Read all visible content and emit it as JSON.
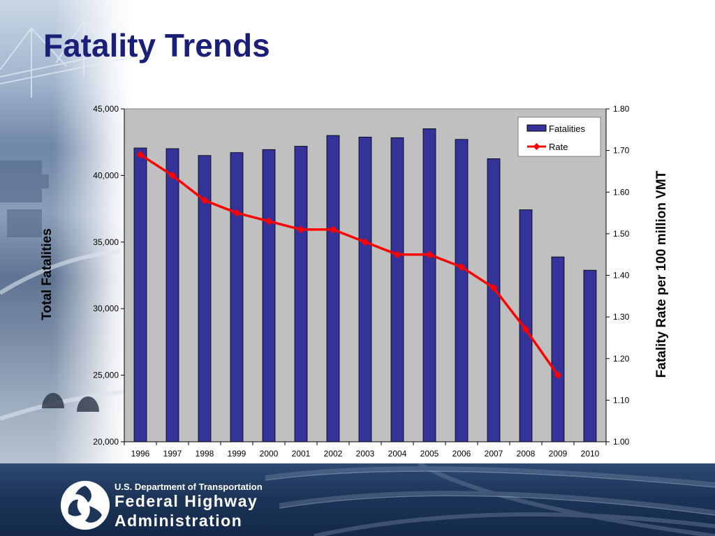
{
  "slide": {
    "title": "Fatality Trends"
  },
  "branding": {
    "department": "U.S. Department of Transportation",
    "agency_line_1": "Federal Highway",
    "agency_line_2": "Administration"
  },
  "colors": {
    "title": "#1a1f78",
    "bar_fill": "#33339a",
    "line": "#ff0000",
    "plot_bg": "#c0c0c0"
  },
  "chart_data": {
    "type": "bar",
    "title": "",
    "categories": [
      "1996",
      "1997",
      "1998",
      "1999",
      "2000",
      "2001",
      "2002",
      "2003",
      "2004",
      "2005",
      "2006",
      "2007",
      "2008",
      "2009",
      "2010"
    ],
    "ylabel": "Total Fatalities",
    "y2label": "Fatality Rate per 100 million VMT",
    "ylim": [
      20000,
      45000
    ],
    "y2lim": [
      1.0,
      1.8
    ],
    "yticks": [
      "20,000",
      "25,000",
      "30,000",
      "35,000",
      "40,000",
      "45,000"
    ],
    "y2ticks": [
      "1.00",
      "1.10",
      "1.20",
      "1.30",
      "1.40",
      "1.50",
      "1.60",
      "1.70",
      "1.80"
    ],
    "grid": false,
    "legend": "top-right",
    "series": [
      {
        "name": "Fatalities",
        "type": "bar",
        "axis": "left",
        "values": [
          42065,
          42013,
          41501,
          41717,
          41945,
          42196,
          43005,
          42884,
          42836,
          43510,
          42708,
          41259,
          37423,
          33883,
          32885
        ]
      },
      {
        "name": "Rate",
        "type": "line",
        "axis": "right",
        "values": [
          1.69,
          1.64,
          1.58,
          1.55,
          1.53,
          1.51,
          1.51,
          1.48,
          1.45,
          1.45,
          1.42,
          1.37,
          1.27,
          1.16,
          null
        ]
      }
    ]
  }
}
